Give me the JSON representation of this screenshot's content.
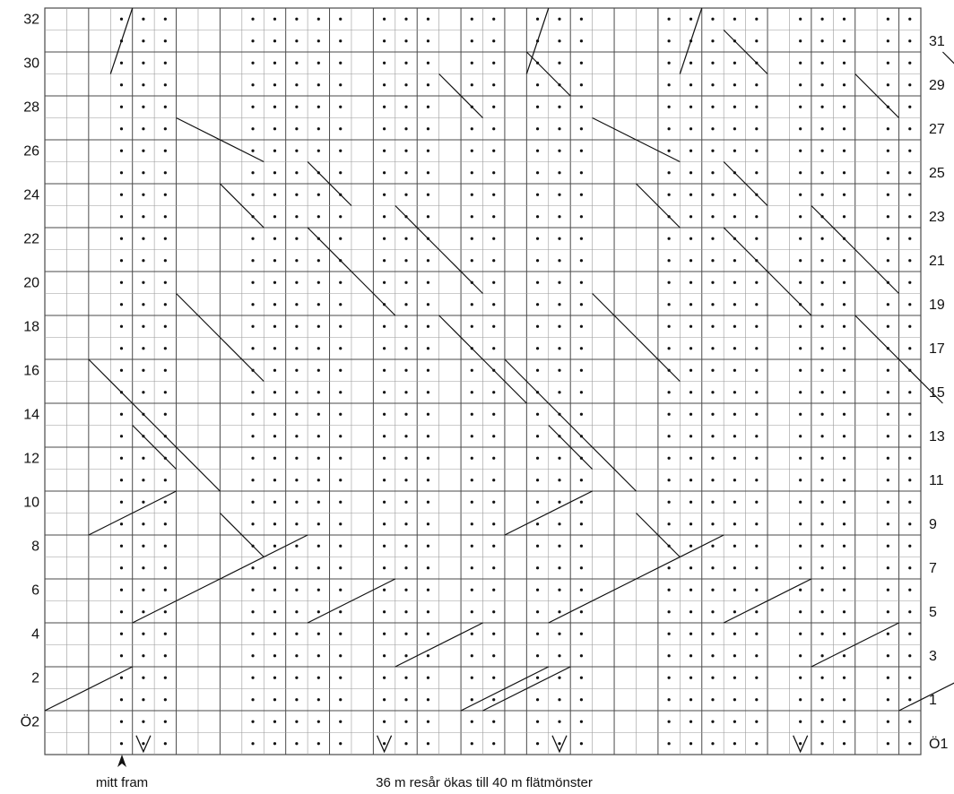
{
  "chart": {
    "left_row_labels": [
      "32",
      "30",
      "28",
      "26",
      "24",
      "22",
      "20",
      "18",
      "16",
      "14",
      "12",
      "10",
      "8",
      "6",
      "4",
      "2",
      "Ö2"
    ],
    "right_row_labels": [
      "31",
      "29",
      "27",
      "25",
      "23",
      "21",
      "19",
      "17",
      "15",
      "13",
      "11",
      "9",
      "7",
      "5",
      "3",
      "1",
      "Ö1"
    ],
    "marker_label": "mitt fram",
    "caption": "36  m resår  ökas  till 40  m flätmönster",
    "colors": {
      "line": "#4a4a4a",
      "grid": "#9a9a9a",
      "ink": "#111111"
    }
  },
  "chart_data": {
    "type": "table",
    "rows": 34,
    "columns": 40,
    "purl_dot_columns": [
      3,
      4,
      5,
      9,
      10,
      11,
      12,
      13,
      15,
      16,
      17,
      19,
      20
    ],
    "increase_symbols": [
      {
        "row": "Ö1",
        "column_after": 4
      },
      {
        "row": "Ö1",
        "column_after": 15
      }
    ]
  }
}
